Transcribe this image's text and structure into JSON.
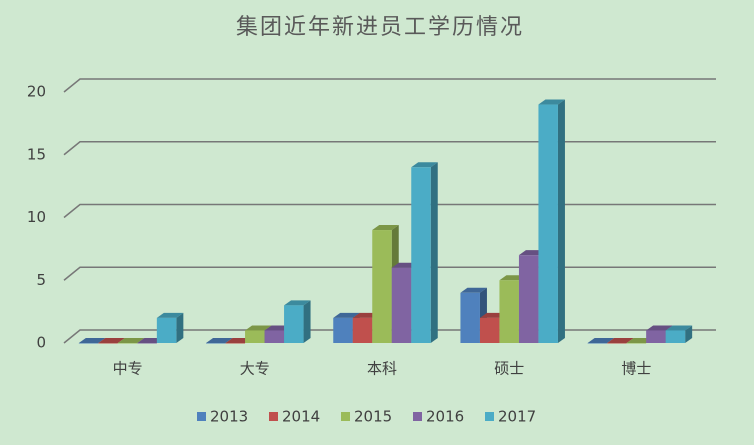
{
  "chart_data": {
    "type": "bar3d",
    "title": "集团近年新进员工学历情况",
    "categories": [
      "中专",
      "大专",
      "本科",
      "硕士",
      "博士"
    ],
    "series": [
      {
        "name": "2013",
        "color": "#4f81bd",
        "values": [
          0,
          0,
          2,
          4,
          0
        ]
      },
      {
        "name": "2014",
        "color": "#c0504d",
        "values": [
          0,
          0,
          2,
          2,
          0
        ]
      },
      {
        "name": "2015",
        "color": "#9bbb59",
        "values": [
          0,
          1,
          9,
          5,
          0
        ]
      },
      {
        "name": "2016",
        "color": "#8064a2",
        "values": [
          0,
          1,
          6,
          7,
          1
        ]
      },
      {
        "name": "2017",
        "color": "#4bacc6",
        "values": [
          2,
          3,
          14,
          19,
          1
        ]
      }
    ],
    "ylim": [
      0,
      20
    ],
    "yticks": [
      0,
      5,
      10,
      15,
      20
    ],
    "grid": true,
    "legend": "bottom"
  }
}
